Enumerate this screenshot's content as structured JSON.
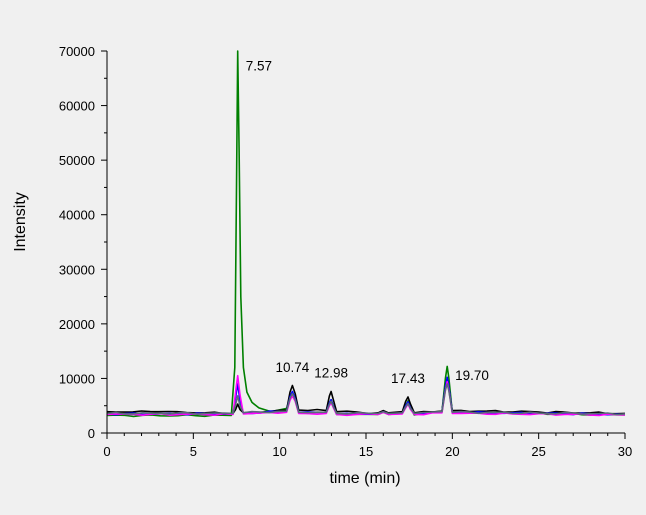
{
  "chart_data": {
    "type": "line",
    "title": "",
    "xlabel": "time (min)",
    "ylabel": "Intensity",
    "xlim": [
      0,
      30
    ],
    "ylim": [
      0,
      70000
    ],
    "xticks": [
      "0",
      "5",
      "10",
      "15",
      "20",
      "25",
      "30"
    ],
    "yticks": [
      "0",
      "10000",
      "20000",
      "30000",
      "40000",
      "50000",
      "60000",
      "70000"
    ],
    "grid": false,
    "legend": "none",
    "peak_labels": [
      {
        "text": "7.57",
        "x": 7.57,
        "y": 69000
      },
      {
        "text": "10.74",
        "x": 10.74,
        "y": 9000
      },
      {
        "text": "12.98",
        "x": 12.98,
        "y": 8000
      },
      {
        "text": "17.43",
        "x": 17.43,
        "y": 7000
      },
      {
        "text": "19.70",
        "x": 19.7,
        "y": 12300
      }
    ],
    "series": [
      {
        "color": "#008000",
        "baseline": 3200,
        "x": [
          0,
          7.2,
          7.4,
          7.5,
          7.57,
          7.65,
          7.75,
          7.9,
          8.1,
          8.4,
          8.8,
          9.5,
          10.4,
          10.6,
          10.74,
          10.9,
          11.1,
          12.7,
          12.88,
          12.98,
          13.1,
          13.3,
          15.7,
          16.0,
          16.3,
          17.1,
          17.3,
          17.43,
          17.58,
          17.8,
          19.4,
          19.6,
          19.7,
          19.8,
          20.0,
          30
        ],
        "y": [
          3200,
          3200,
          12000,
          45000,
          70000,
          52000,
          25000,
          12000,
          7500,
          5600,
          4600,
          3900,
          4500,
          6400,
          7100,
          6000,
          3700,
          3800,
          5500,
          6100,
          5000,
          3400,
          3400,
          3800,
          3400,
          3600,
          5000,
          5900,
          4600,
          3300,
          4000,
          10000,
          12200,
          10000,
          3800,
          3300
        ]
      },
      {
        "color": "#000000",
        "baseline": 3800,
        "x": [
          0,
          3,
          7.3,
          7.45,
          7.57,
          7.7,
          7.9,
          10.4,
          10.6,
          10.74,
          10.9,
          11.1,
          12.7,
          12.88,
          12.98,
          13.1,
          13.3,
          15.7,
          16.0,
          16.3,
          17.1,
          17.3,
          17.43,
          17.58,
          17.8,
          19.4,
          19.6,
          19.7,
          19.8,
          20.0,
          30
        ],
        "y": [
          3900,
          3900,
          3600,
          4300,
          5300,
          4300,
          3700,
          4200,
          7500,
          8700,
          7200,
          4200,
          4100,
          6800,
          7600,
          6200,
          3900,
          3700,
          4100,
          3700,
          3900,
          5800,
          6600,
          5300,
          3700,
          4000,
          8500,
          9500,
          8000,
          4100,
          3600
        ]
      },
      {
        "color": "#0000ff",
        "baseline": 3500,
        "x": [
          0,
          7.3,
          7.45,
          7.57,
          7.7,
          7.9,
          10.4,
          10.6,
          10.74,
          10.9,
          11.1,
          12.7,
          12.88,
          12.98,
          13.1,
          13.3,
          15.7,
          16.0,
          16.3,
          17.1,
          17.3,
          17.43,
          17.58,
          17.8,
          19.4,
          19.6,
          19.7,
          19.8,
          20.0,
          30
        ],
        "y": [
          3500,
          3500,
          6500,
          9000,
          6000,
          3600,
          4000,
          6600,
          7600,
          6300,
          3800,
          3800,
          5500,
          6100,
          5000,
          3500,
          3500,
          3900,
          3500,
          3600,
          5000,
          5700,
          4600,
          3500,
          3900,
          8500,
          10200,
          8400,
          3800,
          3400
        ]
      },
      {
        "color": "#ff00ff",
        "baseline": 3400,
        "x": [
          0,
          7.3,
          7.45,
          7.57,
          7.7,
          7.9,
          10.4,
          10.6,
          10.74,
          10.9,
          11.1,
          12.7,
          12.88,
          12.98,
          13.1,
          13.3,
          15.7,
          16.0,
          16.3,
          17.1,
          17.3,
          17.43,
          17.58,
          17.8,
          19.4,
          19.6,
          19.7,
          19.8,
          20.0,
          30
        ],
        "y": [
          3400,
          3400,
          7500,
          10500,
          7000,
          3500,
          3800,
          6000,
          6800,
          5800,
          3600,
          3600,
          5000,
          5600,
          4700,
          3400,
          3400,
          3800,
          3400,
          3500,
          4600,
          5300,
          4300,
          3400,
          3700,
          7800,
          9400,
          7800,
          3600,
          3300
        ]
      },
      {
        "color": "#5a6a7a",
        "baseline": 3600,
        "x": [
          0,
          7.3,
          7.45,
          7.57,
          7.7,
          7.9,
          10.4,
          10.6,
          10.74,
          10.9,
          11.1,
          12.7,
          12.88,
          12.98,
          13.1,
          13.3,
          15.7,
          16.0,
          16.3,
          17.1,
          17.3,
          17.43,
          17.58,
          17.8,
          19.4,
          19.6,
          19.7,
          19.8,
          20.0,
          30
        ],
        "y": [
          3600,
          3600,
          5200,
          6800,
          5000,
          3700,
          4000,
          6400,
          7200,
          6100,
          3800,
          3800,
          5300,
          5800,
          4900,
          3600,
          3600,
          3900,
          3600,
          3700,
          4800,
          5400,
          4500,
          3600,
          3900,
          7900,
          9000,
          7700,
          3800,
          3500
        ]
      }
    ]
  }
}
